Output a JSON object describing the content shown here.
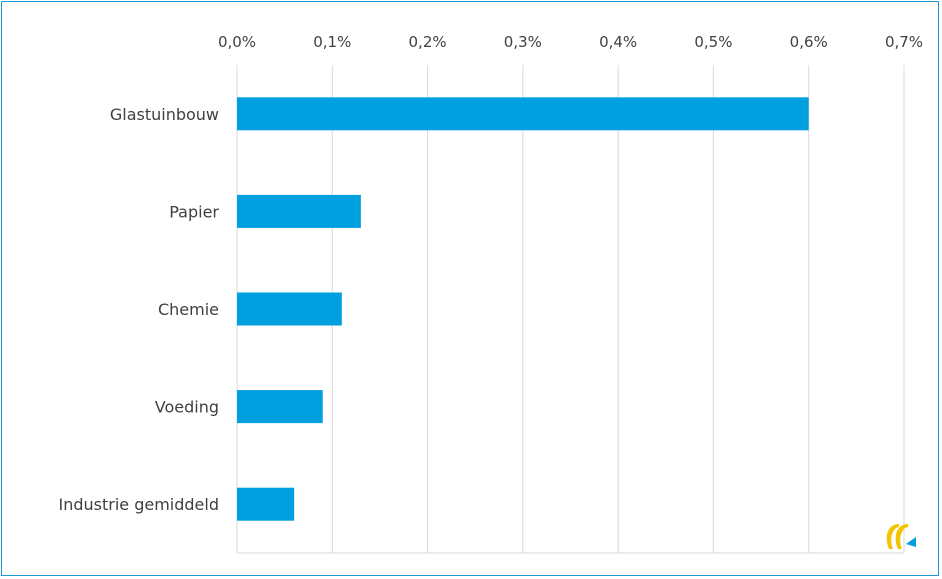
{
  "chart_data": {
    "type": "bar",
    "orientation": "horizontal",
    "categories": [
      "Glastuinbouw",
      "Papier",
      "Chemie",
      "Voeding",
      "Industrie gemiddeld"
    ],
    "values": [
      0.6,
      0.13,
      0.11,
      0.09,
      0.06
    ],
    "value_unit": "%",
    "xlim": [
      0,
      0.7
    ],
    "x_ticks": [
      "0,0%",
      "0,1%",
      "0,2%",
      "0,3%",
      "0,4%",
      "0,5%",
      "0,6%",
      "0,7%"
    ],
    "x_axis_position": "top",
    "grid": true,
    "legend": "none",
    "bar_color": "#009fe0",
    "grid_color": "#d9d9d9",
    "frame_color": "#1e9ad6"
  },
  "logo": {
    "name": "brand-logo-icon",
    "colors": [
      "#f5c400",
      "#009fe0"
    ]
  }
}
